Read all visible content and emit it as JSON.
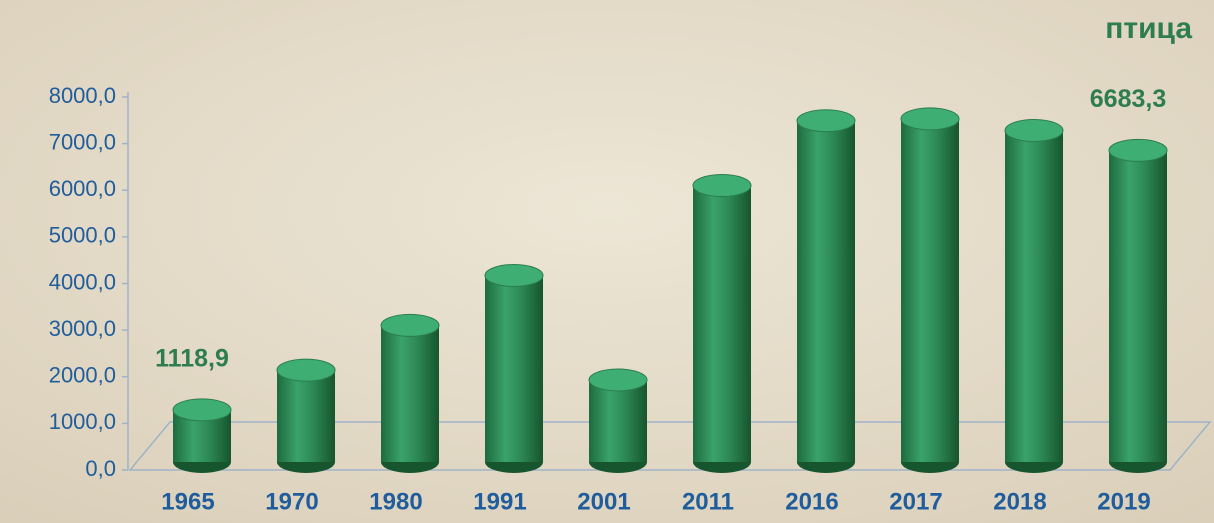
{
  "chart_data": {
    "type": "bar",
    "title": "птица",
    "categories": [
      "1965",
      "1970",
      "1980",
      "1991",
      "2001",
      "2011",
      "2016",
      "2017",
      "2018",
      "2019"
    ],
    "values": [
      1118.9,
      1970,
      2930,
      4000,
      1760,
      5930,
      7320,
      7360,
      7110,
      6683.3
    ],
    "value_labels": [
      "1118,9",
      null,
      null,
      null,
      null,
      null,
      null,
      null,
      null,
      "6683,3"
    ],
    "color": "#2e8b57",
    "ylim": [
      0,
      8000
    ],
    "yticks": [
      {
        "value": 0,
        "label": "0,0"
      },
      {
        "value": 1000,
        "label": "1000,0"
      },
      {
        "value": 2000,
        "label": "2000,0"
      },
      {
        "value": 3000,
        "label": "3000,0"
      },
      {
        "value": 4000,
        "label": "4000,0"
      },
      {
        "value": 5000,
        "label": "5000,0"
      },
      {
        "value": 6000,
        "label": "6000,0"
      },
      {
        "value": 7000,
        "label": "7000,0"
      },
      {
        "value": 8000,
        "label": "8000,0"
      }
    ],
    "grid": false
  }
}
